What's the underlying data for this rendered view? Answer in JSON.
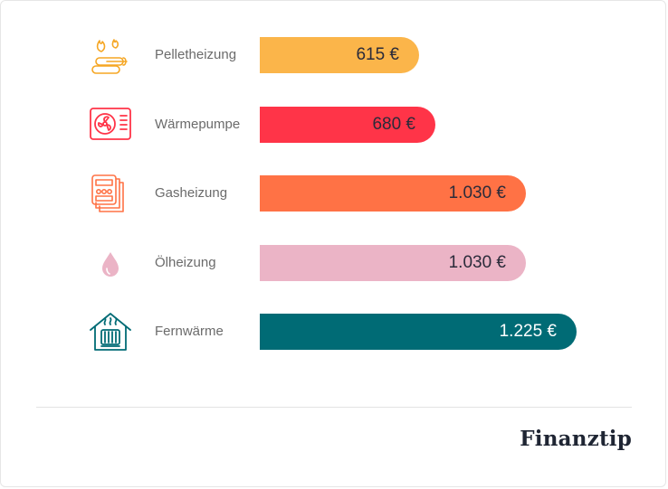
{
  "chart_data": {
    "type": "bar",
    "orientation": "horizontal",
    "categories": [
      "Pelletheizung",
      "Wärmepumpe",
      "Gasheizung",
      "Ölheizung",
      "Fernwärme"
    ],
    "values": [
      615,
      680,
      1030,
      1030,
      1225
    ],
    "value_labels": [
      "615 €",
      "680 €",
      "1.030 €",
      "1.030 €",
      "1.225 €"
    ],
    "colors": [
      "#fbb54a",
      "#ff3448",
      "#ff7245",
      "#ebb4c6",
      "#006b75"
    ],
    "icons": [
      "pellet-fire-icon",
      "heat-pump-icon",
      "gas-meter-icon",
      "oil-drop-icon",
      "district-heating-house-icon"
    ],
    "unit": "€",
    "xlim": [
      0,
      1225
    ],
    "title": "",
    "xlabel": "",
    "ylabel": "",
    "grid": false,
    "legend": "none"
  },
  "footer": {
    "brand": "Finanztip"
  }
}
